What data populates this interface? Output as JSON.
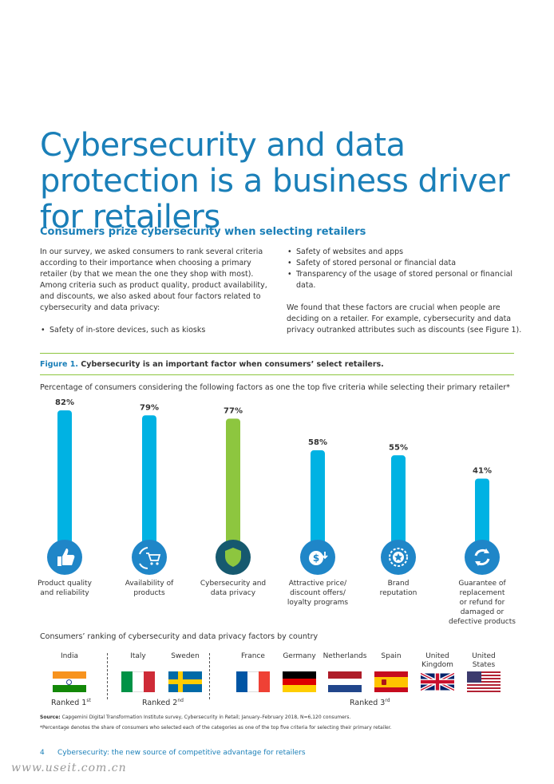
{
  "title": "Cybersecurity and data protection is a business driver for retailers",
  "subtitle": "Consumers prize cybersecurity when selecting retailers",
  "left_paragraph": "In our survey, we asked consumers to rank several criteria according to their importance when choosing a primary retailer (by that we mean the one they shop with most). Among criteria such as product quality, product availability, and discounts, we also asked about four factors related to cybersecurity and data privacy:",
  "bullets": [
    "Safety of in-store devices, such as kiosks",
    "Safety of websites and apps",
    "Safety of stored personal or financial data",
    "Transparency of the usage of stored personal or financial data."
  ],
  "right_paragraph": "We found that these factors are crucial when people are deciding on a retailer. For example, cybersecurity and data privacy outranked attributes such as discounts (see Figure 1).",
  "figure": {
    "number": "Figure 1.",
    "caption": "Cybersecurity is an important factor when consumers’ select retailers.",
    "subtitle": "Percentage of consumers considering the following factors as one the top five criteria while selecting their primary retailer*"
  },
  "chart_data": {
    "type": "bar",
    "categories": [
      "Product quality and reliability",
      "Availability of products",
      "Cybersecurity and data privacy",
      "Attractive price/ discount offers/ loyalty programs",
      "Brand reputation",
      "Guarantee of replacement or refund for damaged or defective products"
    ],
    "category_lines": [
      [
        "Product quality",
        "and reliability"
      ],
      [
        "Availability of",
        "products"
      ],
      [
        "Cybersecurity and",
        "data privacy"
      ],
      [
        "Attractive price/",
        "discount offers/",
        "loyalty programs"
      ],
      [
        "Brand",
        "reputation"
      ],
      [
        "Guarantee of",
        "replacement",
        "or refund for",
        "damaged or",
        "defective products"
      ]
    ],
    "values": [
      82,
      79,
      77,
      58,
      55,
      41
    ],
    "value_labels": [
      "82%",
      "79%",
      "77%",
      "58%",
      "55%",
      "41%"
    ],
    "highlight_index": 2,
    "colors": {
      "bar": "#00b2e3",
      "highlight": "#8dc63f",
      "icon": "#1f86c8",
      "icon_highlight": "#16596f"
    },
    "icons": [
      "thumbs-up-icon",
      "cart-refresh-icon",
      "shield-icon",
      "price-tag-icon",
      "star-badge-icon",
      "refresh-icon"
    ],
    "ylim": [
      0,
      82
    ]
  },
  "country_ranking": {
    "title": "Consumers’ ranking of cybersecurity and data privacy factors by country",
    "countries": [
      {
        "name": "India",
        "flag": "india-flag"
      },
      {
        "name": "Italy",
        "flag": "italy-flag"
      },
      {
        "name": "Sweden",
        "flag": "sweden-flag"
      },
      {
        "name": "France",
        "flag": "france-flag"
      },
      {
        "name": "Germany",
        "flag": "germany-flag"
      },
      {
        "name": "Netherlands",
        "flag": "netherlands-flag"
      },
      {
        "name": "Spain",
        "flag": "spain-flag"
      },
      {
        "name": "United Kingdom",
        "flag": "uk-flag"
      },
      {
        "name": "United States",
        "flag": "us-flag"
      }
    ],
    "ranks": [
      {
        "label": "Ranked 1",
        "sup": "st"
      },
      {
        "label": "Ranked 2",
        "sup": "nd"
      },
      {
        "label": "Ranked 3",
        "sup": "rd"
      }
    ]
  },
  "source_label": "Source:",
  "source_text": "Capgemini Digital Transformation Institute survey, Cybersecurity in Retail; January–February 2018, N=6,120 consumers.",
  "footnote": "*Percentage denotes the share of consumers who selected each of the categories as one of the top five criteria for selecting their primary retailer.",
  "page_number": "4",
  "footer_text": "Cybersecurity: the new source of competitive advantage for retailers",
  "watermark": "www.useit.com.cn"
}
